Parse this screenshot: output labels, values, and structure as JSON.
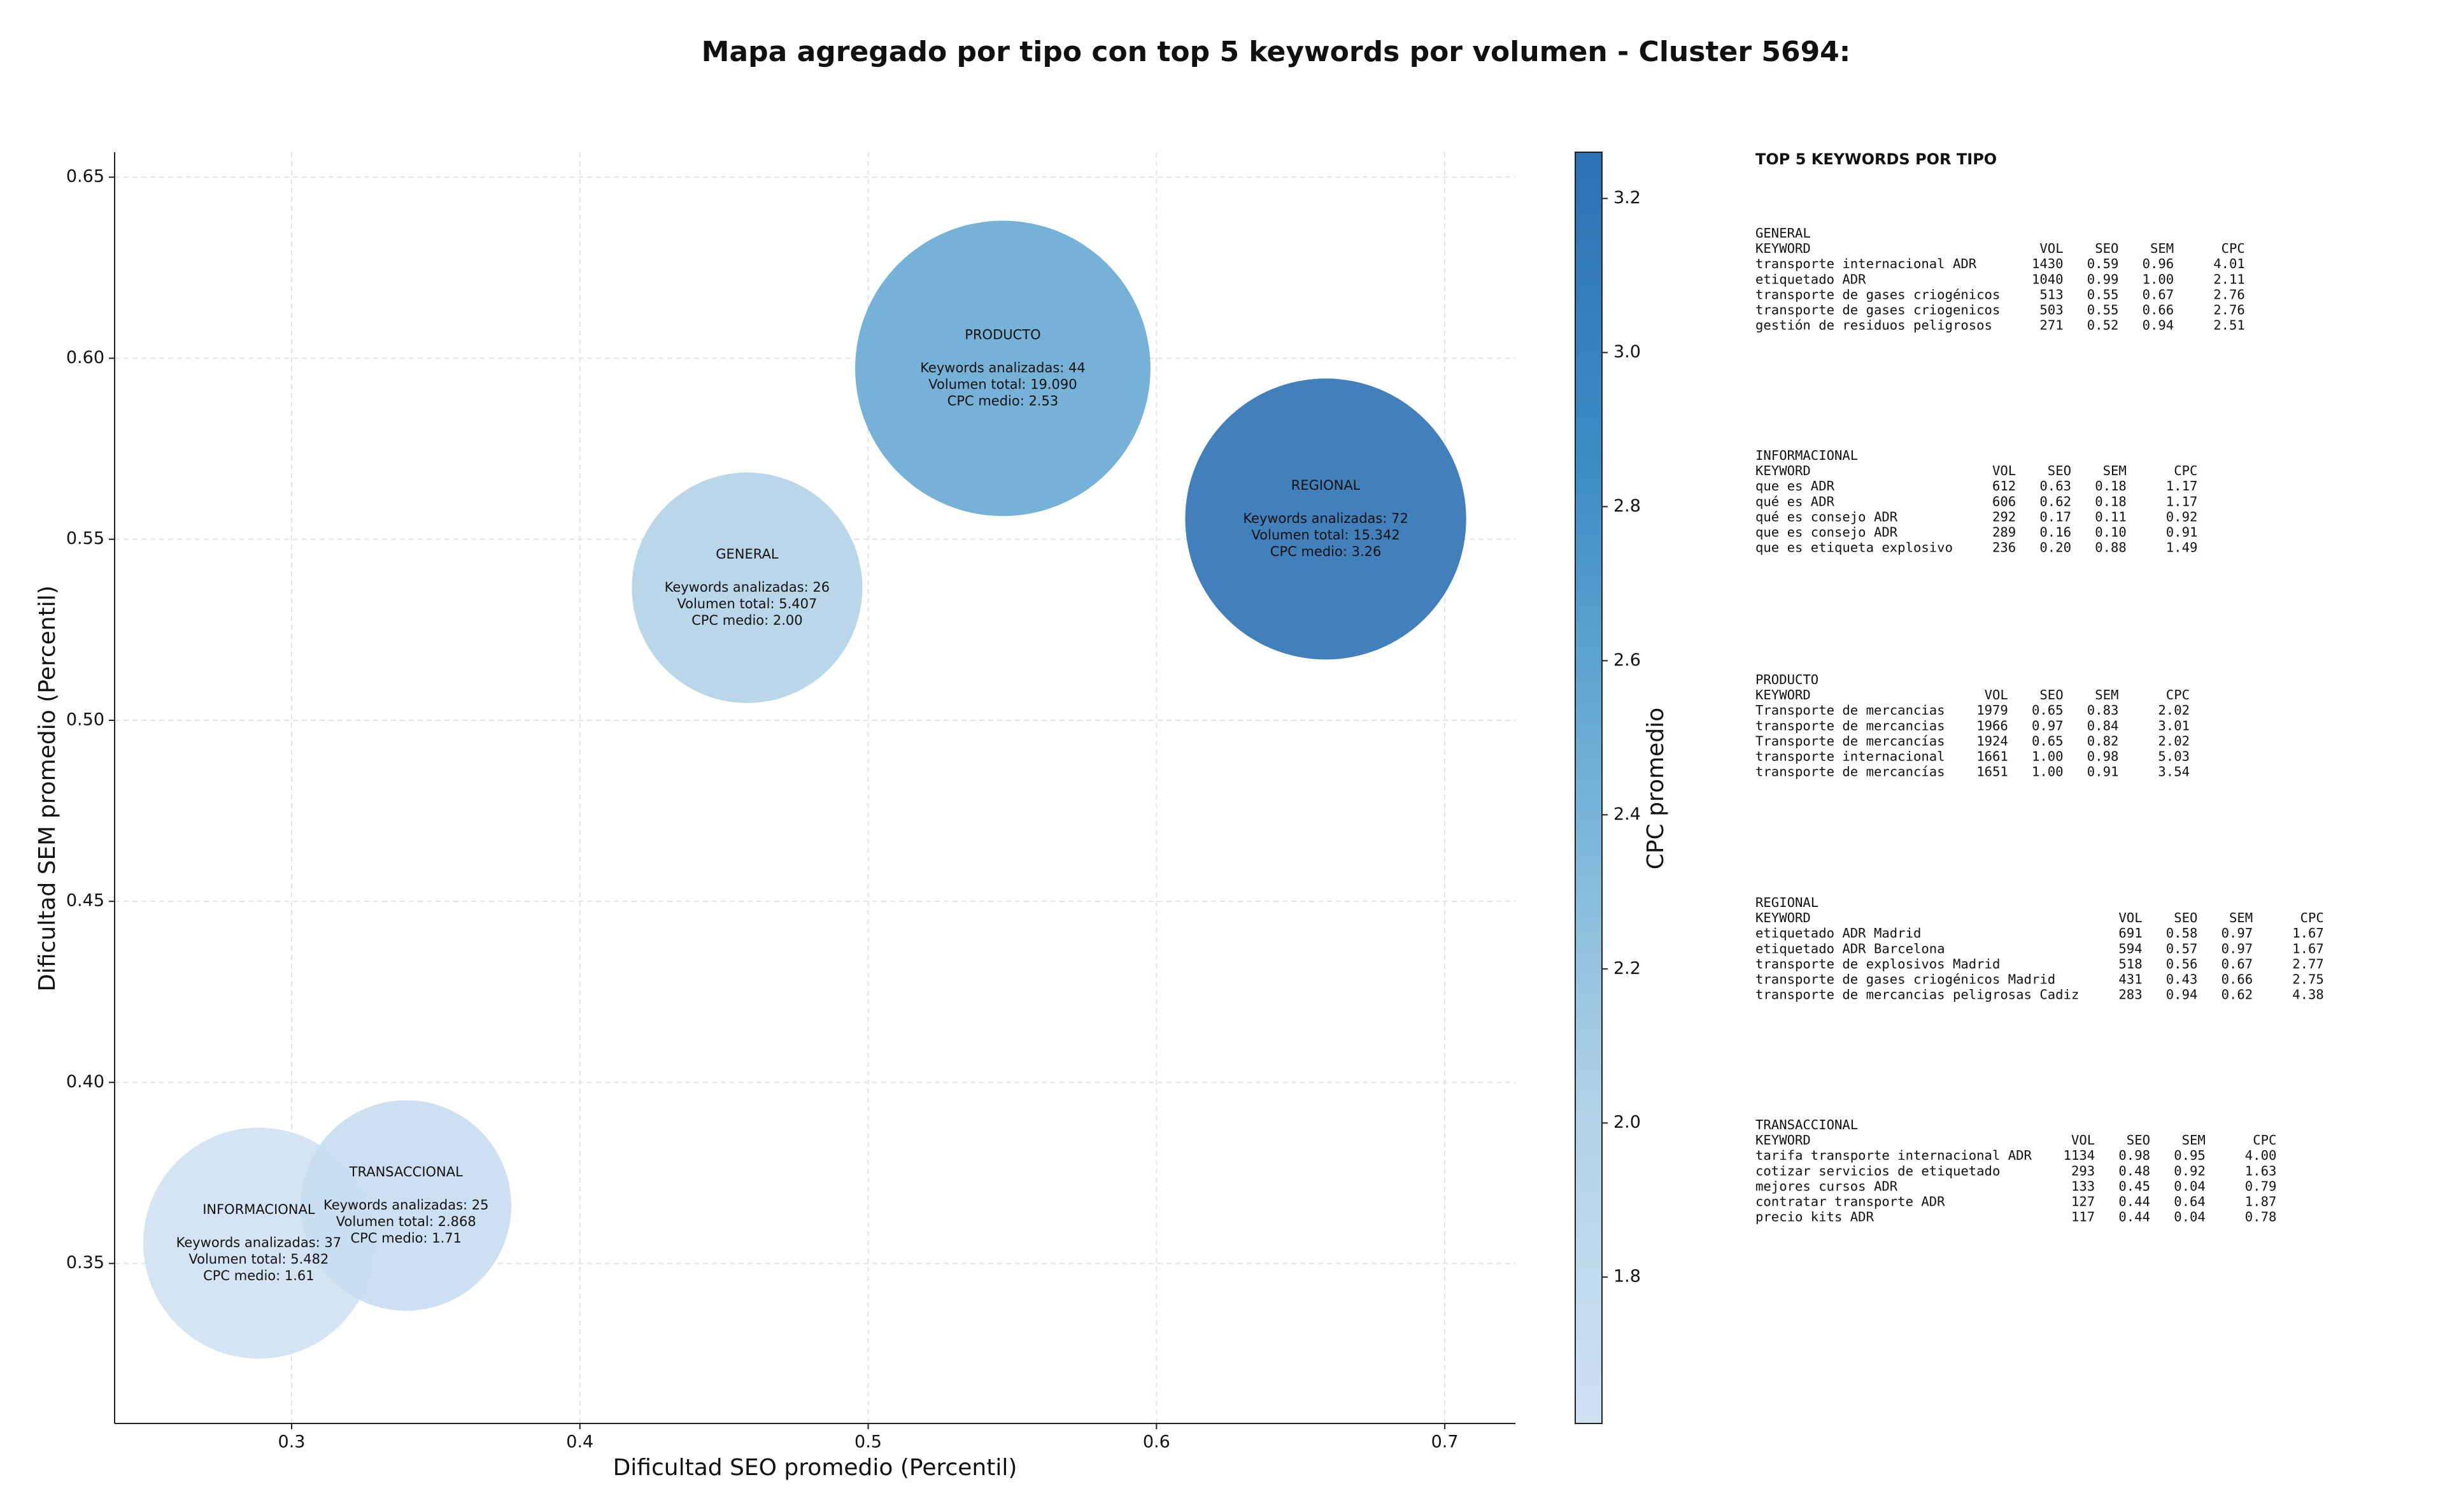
{
  "chart_data": {
    "type": "bubble",
    "title": "Mapa agregado por tipo con top 5 keywords por volumen - Cluster 5694:",
    "x_label": "Dificultad SEO promedio (Percentil)",
    "y_label": "Dificultad SEM promedio (Percentil)",
    "colorbar_label": "CPC promedio",
    "categories": [
      "GENERAL",
      "INFORMACIONAL",
      "PRODUCTO",
      "REGIONAL",
      "TRANSACCIONAL"
    ],
    "x": [
      0.458,
      0.2886,
      0.5467,
      0.6587,
      0.3397
    ],
    "y": [
      0.5366,
      0.3556,
      0.5972,
      0.5556,
      0.366
    ],
    "sizes": [
      5407,
      5482,
      19090,
      15342,
      2868
    ],
    "color_values": [
      2.0,
      1.61,
      2.53,
      3.26,
      1.71
    ],
    "annotations": [
      [
        "Keywords analizadas: 26",
        "Volumen total: 5.407",
        "CPC medio: 2.00"
      ],
      [
        "Keywords analizadas: 37",
        "Volumen total: 5.482",
        "CPC medio: 1.61"
      ],
      [
        "Keywords analizadas: 44",
        "Volumen total: 19.090",
        "CPC medio: 2.53"
      ],
      [
        "Keywords analizadas: 72",
        "Volumen total: 15.342",
        "CPC medio: 3.26"
      ],
      [
        "Keywords analizadas: 25",
        "Volumen total: 2.868",
        "CPC medio: 1.71"
      ]
    ],
    "xlim": [
      0.2386,
      0.7245
    ],
    "ylim": [
      0.3058,
      0.6569
    ],
    "xticks": [
      0.3,
      0.4,
      0.5,
      0.6,
      0.7
    ],
    "yticks": [
      0.35,
      {
        "value": 0.4,
        "label": "0.40"
      },
      0.45,
      {
        "value": 0.5,
        "label": "0.50"
      },
      0.55,
      {
        "value": 0.6,
        "label": "0.60"
      },
      0.65
    ],
    "clim": [
      1.61,
      3.26
    ],
    "cticks": [
      1.8,
      {
        "value": 2.0,
        "label": "2.0"
      },
      2.2,
      2.4,
      2.6,
      2.8,
      {
        "value": 3.0,
        "label": "3.0"
      },
      3.2
    ],
    "colorscale": [
      "#d0e1f2",
      "#b0d2e7",
      "#73b2d8",
      "#3d8dc4",
      "#2e72b4"
    ],
    "grid": true
  },
  "keyword_panel": {
    "title": "TOP 5 KEYWORDS POR TIPO",
    "columns": [
      "KEYWORD",
      "VOL",
      "SEO",
      "SEM",
      "CPC"
    ],
    "sections": [
      {
        "name": "GENERAL",
        "rows": [
          [
            "transporte internacional ADR",
            "1430",
            "0.59",
            "0.96",
            "4.01"
          ],
          [
            "etiquetado ADR",
            "1040",
            "0.99",
            "1.00",
            "2.11"
          ],
          [
            "transporte de gases criogénicos",
            "513",
            "0.55",
            "0.67",
            "2.76"
          ],
          [
            "transporte de gases criogenicos",
            "503",
            "0.55",
            "0.66",
            "2.76"
          ],
          [
            "gestión de residuos peligrosos",
            "271",
            "0.52",
            "0.94",
            "2.51"
          ]
        ]
      },
      {
        "name": "INFORMACIONAL",
        "rows": [
          [
            "que es ADR",
            "612",
            "0.63",
            "0.18",
            "1.17"
          ],
          [
            "qué es ADR",
            "606",
            "0.62",
            "0.18",
            "1.17"
          ],
          [
            "qué es consejo ADR",
            "292",
            "0.17",
            "0.11",
            "0.92"
          ],
          [
            "que es consejo ADR",
            "289",
            "0.16",
            "0.10",
            "0.91"
          ],
          [
            "que es etiqueta explosivo",
            "236",
            "0.20",
            "0.88",
            "1.49"
          ]
        ]
      },
      {
        "name": "PRODUCTO",
        "rows": [
          [
            "Transporte de mercancias",
            "1979",
            "0.65",
            "0.83",
            "2.02"
          ],
          [
            "transporte de mercancias",
            "1966",
            "0.97",
            "0.84",
            "3.01"
          ],
          [
            "Transporte de mercancías",
            "1924",
            "0.65",
            "0.82",
            "2.02"
          ],
          [
            "transporte internacional",
            "1661",
            "1.00",
            "0.98",
            "5.03"
          ],
          [
            "transporte de mercancías",
            "1651",
            "1.00",
            "0.91",
            "3.54"
          ]
        ]
      },
      {
        "name": "REGIONAL",
        "rows": [
          [
            "etiquetado ADR Madrid",
            "691",
            "0.58",
            "0.97",
            "1.67"
          ],
          [
            "etiquetado ADR Barcelona",
            "594",
            "0.57",
            "0.97",
            "1.67"
          ],
          [
            "transporte de explosivos Madrid",
            "518",
            "0.56",
            "0.67",
            "2.77"
          ],
          [
            "transporte de gases criogénicos Madrid",
            "431",
            "0.43",
            "0.66",
            "2.75"
          ],
          [
            "transporte de mercancias peligrosas Cadiz",
            "283",
            "0.94",
            "0.62",
            "4.38"
          ]
        ]
      },
      {
        "name": "TRANSACCIONAL",
        "rows": [
          [
            "tarifa transporte internacional ADR",
            "1134",
            "0.98",
            "0.95",
            "4.00"
          ],
          [
            "cotizar servicios de etiquetado",
            "293",
            "0.48",
            "0.92",
            "1.63"
          ],
          [
            "mejores cursos ADR",
            "133",
            "0.45",
            "0.04",
            "0.79"
          ],
          [
            "contratar transporte ADR",
            "127",
            "0.44",
            "0.64",
            "1.87"
          ],
          [
            "precio kits ADR",
            "117",
            "0.44",
            "0.04",
            "0.78"
          ]
        ]
      }
    ]
  }
}
